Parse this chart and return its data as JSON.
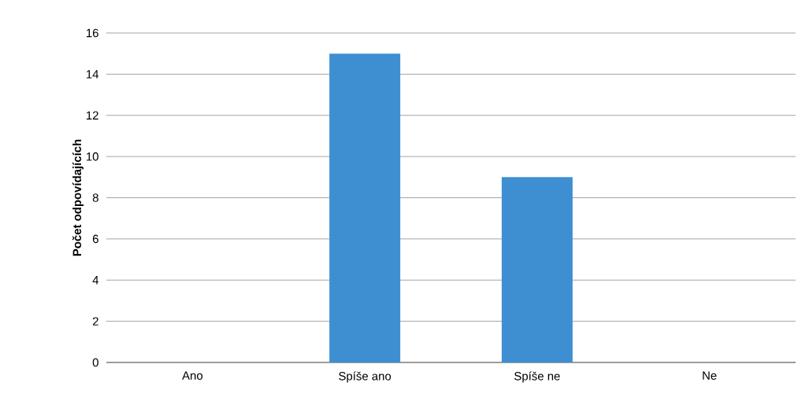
{
  "chart_data": {
    "type": "bar",
    "ylabel": "Počet odpovídajících",
    "categories": [
      "Ano",
      "Spíše ano",
      "Spíše ne",
      "Ne"
    ],
    "values": [
      0,
      15,
      9,
      0
    ],
    "color": "#3d8fd1",
    "ylim": [
      0,
      16
    ],
    "yticks": [
      0,
      2,
      4,
      6,
      8,
      10,
      12,
      14,
      16
    ],
    "grid": "y"
  }
}
